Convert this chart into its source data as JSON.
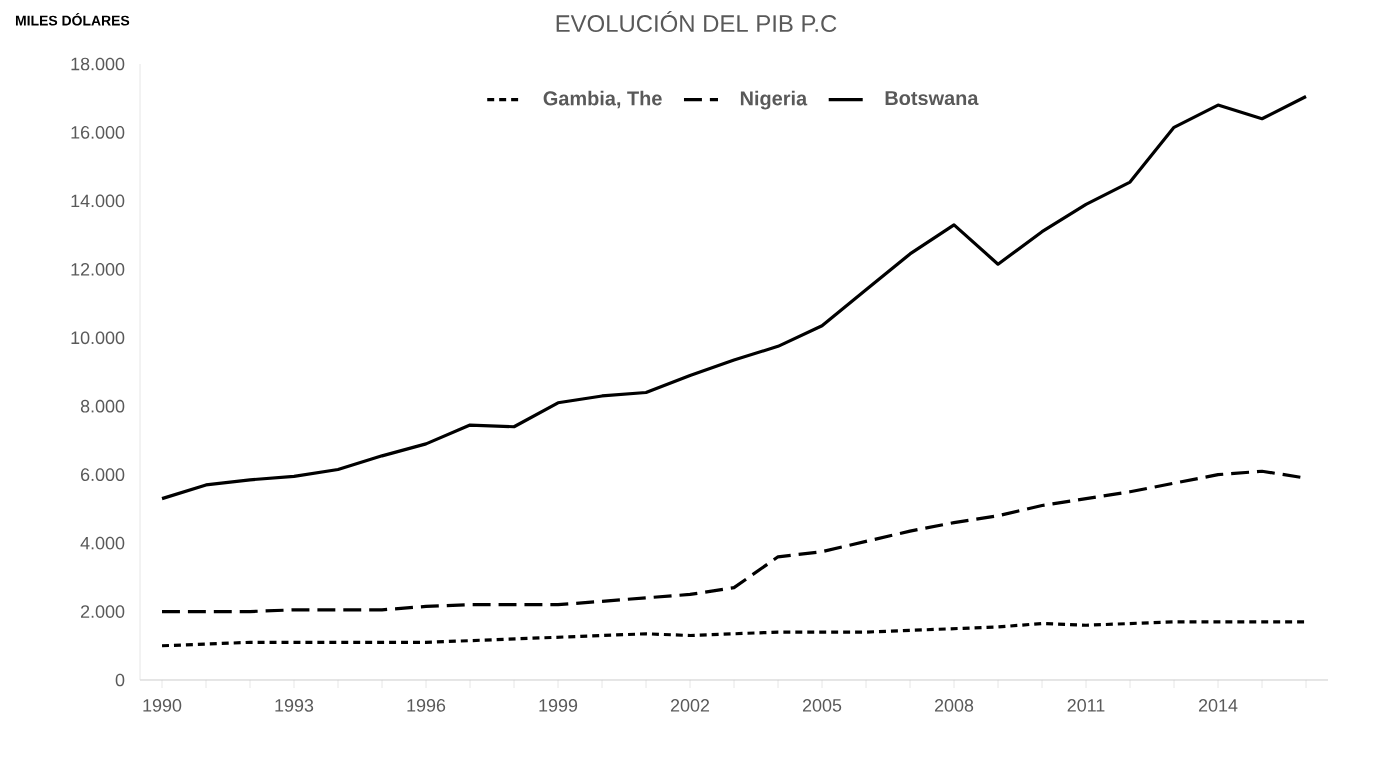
{
  "chart_data": {
    "type": "line",
    "title": "EVOLUCIÓN DEL PIB P.C",
    "ylabel": "MILES DÓLARES",
    "x": [
      1990,
      1991,
      1992,
      1993,
      1994,
      1995,
      1996,
      1997,
      1998,
      1999,
      2000,
      2001,
      2002,
      2003,
      2004,
      2005,
      2006,
      2007,
      2008,
      2009,
      2010,
      2011,
      2012,
      2013,
      2014,
      2015,
      2016
    ],
    "series": [
      {
        "name": "Gambia, The",
        "color": "#000000",
        "line_style": "dotted",
        "values": [
          1000,
          1050,
          1100,
          1100,
          1100,
          1100,
          1100,
          1150,
          1200,
          1250,
          1300,
          1350,
          1300,
          1350,
          1400,
          1400,
          1400,
          1450,
          1500,
          1550,
          1650,
          1600,
          1650,
          1700,
          1700,
          1700,
          1700
        ]
      },
      {
        "name": "Nigeria",
        "color": "#000000",
        "line_style": "dashed",
        "values": [
          2000,
          2000,
          2000,
          2050,
          2050,
          2050,
          2150,
          2200,
          2200,
          2200,
          2300,
          2400,
          2500,
          2700,
          3600,
          3750,
          4050,
          4350,
          4600,
          4800,
          5100,
          5300,
          5500,
          5750,
          6000,
          6100,
          5900
        ]
      },
      {
        "name": "Botswana",
        "color": "#000000",
        "line_style": "solid",
        "values": [
          5300,
          5700,
          5850,
          5950,
          6150,
          6550,
          6900,
          7450,
          7400,
          8100,
          8300,
          8400,
          8900,
          9350,
          9750,
          10350,
          11400,
          12450,
          13300,
          12150,
          13100,
          13900,
          14550,
          16150,
          16800,
          16400,
          17050
        ]
      }
    ],
    "xlim": [
      1989.5,
      2016.5
    ],
    "xticks": [
      1990,
      {
        "value": 1991,
        "label": null
      },
      {
        "value": 1992,
        "label": null
      },
      1993,
      {
        "value": 1994,
        "label": null
      },
      {
        "value": 1995,
        "label": null
      },
      1996,
      {
        "value": 1997,
        "label": null
      },
      {
        "value": 1998,
        "label": null
      },
      1999,
      {
        "value": 2000,
        "label": null
      },
      {
        "value": 2001,
        "label": null
      },
      2002,
      {
        "value": 2003,
        "label": null
      },
      {
        "value": 2004,
        "label": null
      },
      2005,
      {
        "value": 2006,
        "label": null
      },
      {
        "value": 2007,
        "label": null
      },
      2008,
      {
        "value": 2009,
        "label": null
      },
      {
        "value": 2010,
        "label": null
      },
      2011,
      {
        "value": 2012,
        "label": null
      },
      {
        "value": 2013,
        "label": null
      },
      2014,
      {
        "value": 2015,
        "label": null
      },
      {
        "value": 2016,
        "label": null
      }
    ],
    "ylim": [
      0,
      18000
    ],
    "yticks": [
      {
        "value": 0,
        "label": "0"
      },
      {
        "value": 2000,
        "label": "2.000"
      },
      {
        "value": 4000,
        "label": "4.000"
      },
      {
        "value": 6000,
        "label": "6.000"
      },
      {
        "value": 8000,
        "label": "8.000"
      },
      {
        "value": 10000,
        "label": "10.000"
      },
      {
        "value": 12000,
        "label": "12.000"
      },
      {
        "value": 14000,
        "label": "14.000"
      },
      {
        "value": 16000,
        "label": "16.000"
      },
      {
        "value": 18000,
        "label": "18.000"
      }
    ],
    "grid": false,
    "legend": "top",
    "marker": "none"
  }
}
